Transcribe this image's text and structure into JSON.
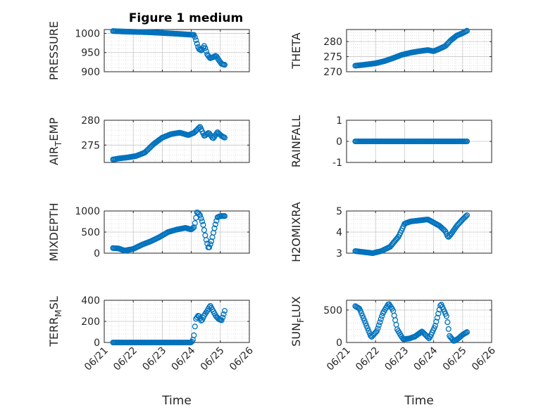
{
  "figure": {
    "title": "Figure 1 medium",
    "xlabel": "Time"
  },
  "chart_data": [
    {
      "type": "scatter",
      "ylabel": "PRESSURE",
      "ylim": [
        900,
        1010
      ],
      "yticks": [
        1000,
        950,
        900
      ],
      "grid": true,
      "minor_grid": true,
      "xlim": [
        "06/21",
        "06/26"
      ],
      "xticks": [
        "06/21",
        "06/22",
        "06/23",
        "06/24",
        "06/25",
        "06/26"
      ],
      "show_xticklabels": false,
      "anchors_x": [
        0.3,
        0.6,
        1.0,
        1.5,
        2.0,
        2.5,
        2.9,
        3.1,
        3.15,
        3.25,
        3.35,
        3.45,
        3.55,
        3.65,
        3.75,
        3.85,
        3.95,
        4.05,
        4.15
      ],
      "anchors_y": [
        1006,
        1005,
        1004,
        1003,
        1001,
        999,
        997,
        996,
        985,
        960,
        955,
        968,
        945,
        935,
        938,
        942,
        930,
        920,
        918
      ]
    },
    {
      "type": "scatter",
      "ylabel": "THETA",
      "ylim": [
        270,
        284
      ],
      "yticks": [
        270,
        275,
        280
      ],
      "grid": true,
      "minor_grid": true,
      "xlim": [
        "06/21",
        "06/26"
      ],
      "xticks": [
        "06/21",
        "06/22",
        "06/23",
        "06/24",
        "06/25",
        "06/26"
      ],
      "show_xticklabels": false,
      "anchors_x": [
        0.3,
        0.6,
        1.0,
        1.3,
        1.6,
        1.9,
        2.2,
        2.5,
        2.8,
        3.0,
        3.2,
        3.4,
        3.6,
        3.8,
        4.0,
        4.15
      ],
      "anchors_y": [
        272,
        272.3,
        272.8,
        273.5,
        274.5,
        275.6,
        276.3,
        276.8,
        277.2,
        276.8,
        277.6,
        278.5,
        280.5,
        282,
        282.8,
        283.6
      ]
    },
    {
      "type": "scatter",
      "ylabel": "AIR_TEMP",
      "ylim": [
        271.5,
        280
      ],
      "yticks": [
        275,
        280
      ],
      "grid": true,
      "minor_grid": true,
      "xlim": [
        "06/21",
        "06/26"
      ],
      "xticks": [
        "06/21",
        "06/22",
        "06/23",
        "06/24",
        "06/25",
        "06/26"
      ],
      "show_xticklabels": false,
      "anchors_x": [
        0.3,
        0.5,
        0.8,
        1.1,
        1.4,
        1.7,
        2.0,
        2.3,
        2.6,
        2.9,
        3.1,
        3.3,
        3.45,
        3.6,
        3.75,
        3.9,
        4.05,
        4.15
      ],
      "anchors_y": [
        272.1,
        272.3,
        272.5,
        272.8,
        273.5,
        275.2,
        276.5,
        277.2,
        277.5,
        277.0,
        277.5,
        278.7,
        276.8,
        277.5,
        276.3,
        277.6,
        276.8,
        276.5
      ]
    },
    {
      "type": "scatter",
      "ylabel": "RAINFALL",
      "ylim": [
        -1,
        1
      ],
      "yticks": [
        1,
        0,
        -1
      ],
      "grid": true,
      "minor_grid": false,
      "xlim": [
        "06/21",
        "06/26"
      ],
      "xticks": [
        "06/21",
        "06/22",
        "06/23",
        "06/24",
        "06/25",
        "06/26"
      ],
      "show_xticklabels": false,
      "anchors_x": [
        0.3,
        4.15
      ],
      "anchors_y": [
        0,
        0
      ]
    },
    {
      "type": "scatter",
      "ylabel": "MIXDEPTH",
      "ylim": [
        0,
        1000
      ],
      "yticks": [
        1000,
        500,
        0
      ],
      "grid": true,
      "minor_grid": true,
      "xlim": [
        "06/21",
        "06/26"
      ],
      "xticks": [
        "06/21",
        "06/22",
        "06/23",
        "06/24",
        "06/25",
        "06/26"
      ],
      "show_xticklabels": false,
      "anchors_x": [
        0.3,
        0.5,
        0.7,
        1.0,
        1.3,
        1.6,
        1.9,
        2.2,
        2.5,
        2.8,
        3.0,
        3.1,
        3.2,
        3.3,
        3.4,
        3.5,
        3.6,
        3.7,
        3.8,
        3.9,
        4.0,
        4.15
      ],
      "anchors_y": [
        120,
        110,
        60,
        100,
        200,
        280,
        380,
        500,
        560,
        600,
        560,
        620,
        980,
        900,
        700,
        350,
        100,
        300,
        600,
        850,
        880,
        880
      ]
    },
    {
      "type": "scatter",
      "ylabel": "H2OMIXRA",
      "ylim": [
        3,
        5
      ],
      "yticks": [
        5,
        4,
        3
      ],
      "grid": true,
      "minor_grid": true,
      "xlim": [
        "06/21",
        "06/26"
      ],
      "xticks": [
        "06/21",
        "06/22",
        "06/23",
        "06/24",
        "06/25",
        "06/26"
      ],
      "show_xticklabels": false,
      "anchors_x": [
        0.3,
        0.6,
        0.9,
        1.2,
        1.5,
        1.8,
        2.0,
        2.2,
        2.5,
        2.8,
        3.0,
        3.2,
        3.4,
        3.5,
        3.6,
        3.8,
        4.0,
        4.15
      ],
      "anchors_y": [
        3.1,
        3.05,
        3.0,
        3.1,
        3.3,
        3.8,
        4.4,
        4.5,
        4.55,
        4.6,
        4.45,
        4.3,
        4.05,
        3.75,
        3.9,
        4.3,
        4.6,
        4.8
      ]
    },
    {
      "type": "scatter",
      "ylabel": "TERR_MSL",
      "ylim": [
        0,
        400
      ],
      "yticks": [
        400,
        200,
        0
      ],
      "grid": true,
      "minor_grid": true,
      "xlim": [
        "06/21",
        "06/26"
      ],
      "xticks": [
        "06/21",
        "06/22",
        "06/23",
        "06/24",
        "06/25",
        "06/26"
      ],
      "show_xticklabels": true,
      "anchors_x": [
        0.3,
        1.0,
        2.0,
        3.0,
        3.05,
        3.1,
        3.15,
        3.25,
        3.35,
        3.45,
        3.55,
        3.65,
        3.75,
        3.85,
        3.95,
        4.05,
        4.15
      ],
      "anchors_y": [
        0,
        0,
        0,
        0,
        20,
        80,
        220,
        260,
        200,
        260,
        300,
        350,
        300,
        250,
        220,
        210,
        300
      ]
    },
    {
      "type": "scatter",
      "ylabel": "SUN_FLUX",
      "ylim": [
        0,
        650
      ],
      "yticks": [
        500,
        0
      ],
      "grid": true,
      "minor_grid": true,
      "xlim": [
        "06/21",
        "06/26"
      ],
      "xticks": [
        "06/21",
        "06/22",
        "06/23",
        "06/24",
        "06/25",
        "06/26"
      ],
      "show_xticklabels": true,
      "anchors_x": [
        0.3,
        0.45,
        0.65,
        0.85,
        1.05,
        1.25,
        1.45,
        1.6,
        1.75,
        1.95,
        2.15,
        2.35,
        2.6,
        2.85,
        3.05,
        3.25,
        3.45,
        3.55,
        3.7,
        3.85,
        4.0,
        4.15
      ],
      "anchors_y": [
        560,
        520,
        300,
        80,
        180,
        450,
        600,
        500,
        200,
        50,
        60,
        90,
        170,
        60,
        250,
        600,
        400,
        100,
        20,
        60,
        120,
        160
      ]
    }
  ]
}
